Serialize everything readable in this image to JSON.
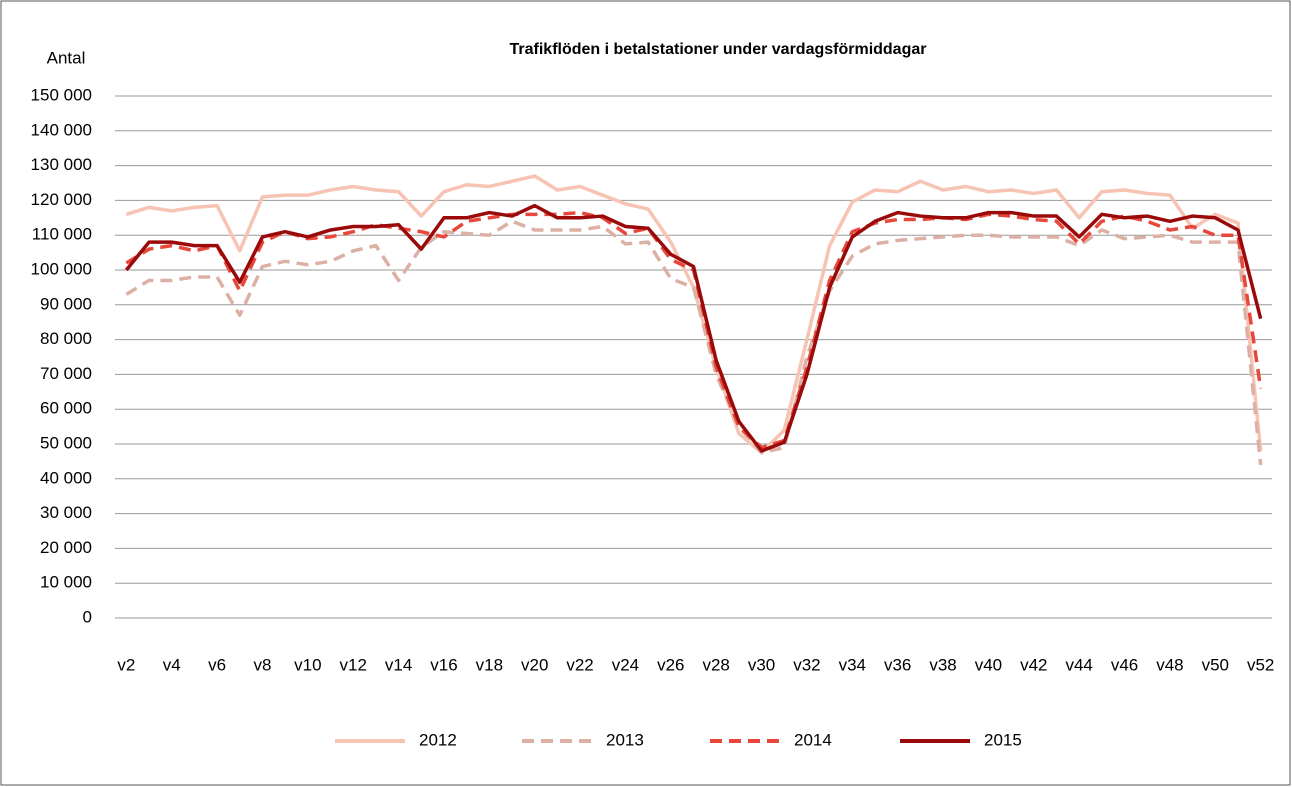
{
  "chart_data": {
    "type": "line",
    "title": "Trafikflöden i betalstationer under vardagsförmiddagar",
    "y_label": "Antal",
    "categories": [
      "v2",
      null,
      "v4",
      null,
      "v6",
      null,
      "v8",
      null,
      "v10",
      null,
      "v12",
      null,
      "v14",
      null,
      "v16",
      null,
      "v18",
      null,
      "v20",
      null,
      "v22",
      null,
      "v24",
      null,
      "v26",
      null,
      "v28",
      null,
      "v30",
      null,
      "v32",
      null,
      "v34",
      null,
      "v36",
      null,
      "v38",
      null,
      "v40",
      null,
      "v42",
      null,
      "v44",
      null,
      "v46",
      null,
      "v48",
      null,
      "v50",
      null,
      "v52"
    ],
    "ylim": [
      0,
      150000
    ],
    "yticks": [
      {
        "value": 0,
        "label": "0"
      },
      {
        "value": 10000,
        "label": "10 000"
      },
      {
        "value": 20000,
        "label": "20 000"
      },
      {
        "value": 30000,
        "label": "30 000"
      },
      {
        "value": 40000,
        "label": "40 000"
      },
      {
        "value": 50000,
        "label": "50 000"
      },
      {
        "value": 60000,
        "label": "60 000"
      },
      {
        "value": 70000,
        "label": "70 000"
      },
      {
        "value": 80000,
        "label": "80 000"
      },
      {
        "value": 90000,
        "label": "90 000"
      },
      {
        "value": 100000,
        "label": "100 000"
      },
      {
        "value": 110000,
        "label": "110 000"
      },
      {
        "value": 120000,
        "label": "120 000"
      },
      {
        "value": 130000,
        "label": "130 000"
      },
      {
        "value": 140000,
        "label": "140 000"
      },
      {
        "value": 150000,
        "label": "150 000"
      }
    ],
    "grid": true,
    "legend": "bottom",
    "series": [
      {
        "name": "2012",
        "color": "#f7c3b3",
        "dashed": false,
        "values": [
          116000,
          118000,
          117000,
          118000,
          118500,
          105500,
          121000,
          121500,
          121500,
          123000,
          124000,
          123000,
          122500,
          115500,
          122500,
          124500,
          124000,
          125500,
          127000,
          123000,
          124000,
          121500,
          119000,
          117500,
          108000,
          95000,
          72000,
          53000,
          47500,
          54000,
          80000,
          107000,
          119500,
          123000,
          122500,
          125500,
          123000,
          124000,
          122500,
          123000,
          122000,
          123000,
          115000,
          122500,
          123000,
          122000,
          121500,
          112000,
          116000,
          113500,
          48000
        ]
      },
      {
        "name": "2013",
        "color": "#ddb0a6",
        "dashed": true,
        "values": [
          93000,
          97000,
          97000,
          98000,
          98000,
          87000,
          101000,
          102500,
          101500,
          102500,
          105500,
          107000,
          97000,
          106500,
          111000,
          110500,
          110000,
          114000,
          111500,
          111500,
          111500,
          112500,
          107500,
          108000,
          97500,
          95000,
          70000,
          55000,
          47500,
          49000,
          75000,
          94000,
          104000,
          107500,
          108500,
          109000,
          109500,
          110000,
          110000,
          109500,
          109500,
          109500,
          107000,
          111500,
          109000,
          109500,
          110000,
          108000,
          108000,
          108000,
          44000
        ]
      },
      {
        "name": "2014",
        "color": "#e8473b",
        "dashed": true,
        "values": [
          102000,
          106000,
          107000,
          105500,
          107000,
          94000,
          108000,
          111000,
          109000,
          109500,
          111000,
          113000,
          112000,
          111000,
          109500,
          114000,
          115000,
          116000,
          116000,
          116000,
          116500,
          115000,
          110500,
          112000,
          103000,
          100000,
          72000,
          55000,
          49000,
          51000,
          72000,
          97000,
          111000,
          113500,
          114500,
          114500,
          115000,
          114500,
          116000,
          115500,
          114500,
          114000,
          107500,
          114000,
          115500,
          114000,
          111500,
          112500,
          110000,
          110000,
          66000
        ]
      },
      {
        "name": "2015",
        "color": "#9b0a0a",
        "dashed": false,
        "values": [
          100000,
          108000,
          108000,
          107000,
          107000,
          96500,
          109500,
          111000,
          109500,
          111500,
          112500,
          112500,
          113000,
          106000,
          115000,
          115000,
          116500,
          115500,
          118500,
          115000,
          115000,
          115500,
          112500,
          112000,
          104500,
          101000,
          74000,
          56500,
          48000,
          50500,
          70000,
          95000,
          109500,
          114000,
          116500,
          115500,
          115000,
          115000,
          116500,
          116500,
          115500,
          115500,
          109500,
          116000,
          115000,
          115500,
          114000,
          115500,
          115000,
          111500,
          86000
        ]
      }
    ]
  }
}
